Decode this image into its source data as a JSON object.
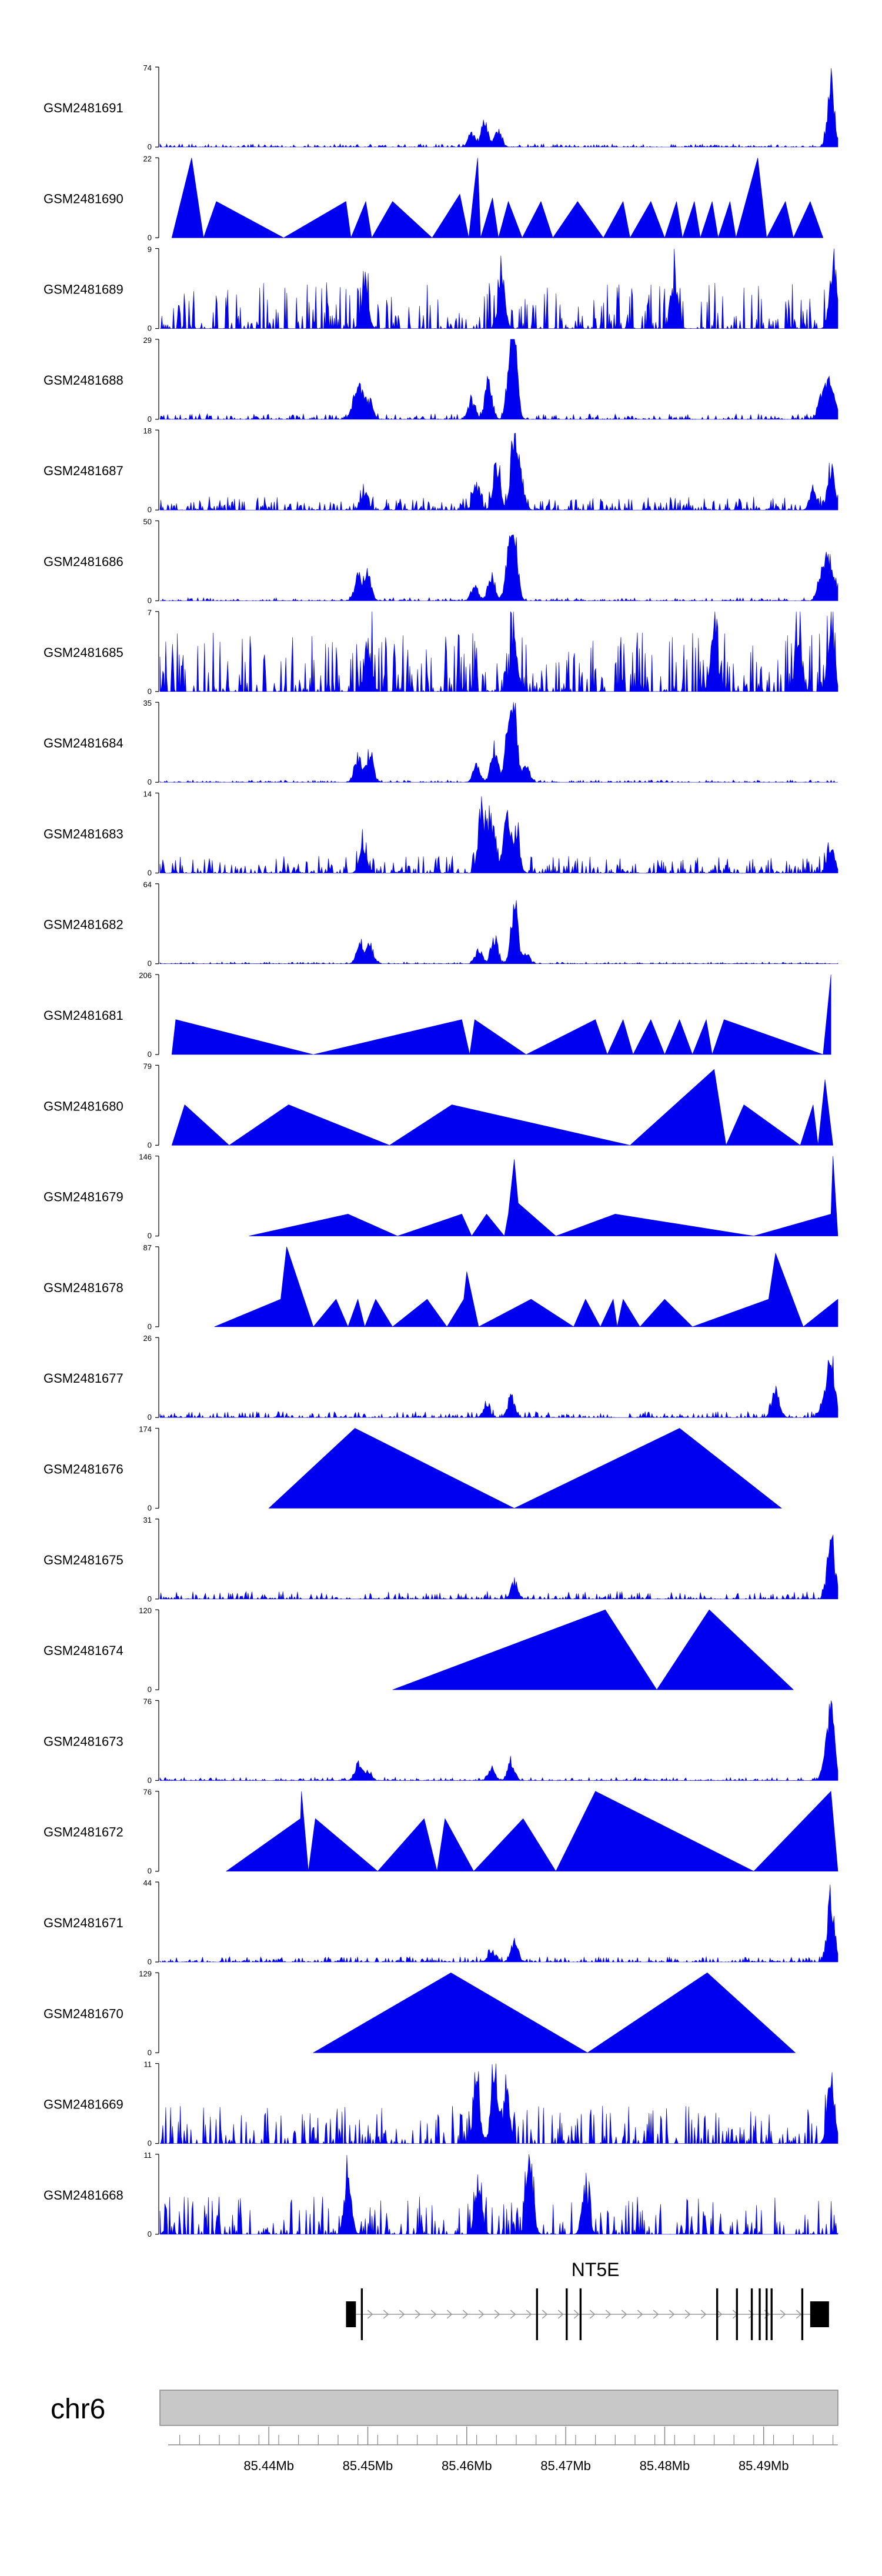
{
  "chart_data": {
    "type": "area",
    "title": "",
    "region": {
      "chromosome": "chr6",
      "start_mb": 85.429,
      "end_mb": 85.4975
    },
    "axis": {
      "ticks_mb": [
        85.44,
        85.45,
        85.46,
        85.47,
        85.48,
        85.49
      ],
      "tick_labels": [
        "85.44Mb",
        "85.45Mb",
        "85.46Mb",
        "85.47Mb",
        "85.48Mb",
        "85.49Mb"
      ]
    },
    "colors": {
      "signal": "#0000f0",
      "gene": "#000000",
      "ideogram": "#c8c8c8",
      "intron_arrow": "#999999"
    },
    "tracks": [
      {
        "name": "GSM2481691",
        "ymax": 74,
        "kind": "sparse",
        "peaks": [
          [
            85.4605,
            14
          ],
          [
            85.4618,
            28
          ],
          [
            85.4632,
            18
          ],
          [
            85.4968,
            74
          ]
        ],
        "noise": 3
      },
      {
        "name": "GSM2481690",
        "ymax": 22,
        "kind": "wedges",
        "points": [
          [
            85.4302,
            0
          ],
          [
            85.4322,
            22
          ],
          [
            85.4334,
            0
          ],
          [
            85.4347,
            10
          ],
          [
            85.4415,
            0
          ],
          [
            85.4478,
            10
          ],
          [
            85.4483,
            0
          ],
          [
            85.4498,
            10
          ],
          [
            85.4504,
            0
          ],
          [
            85.4525,
            10
          ],
          [
            85.4565,
            0
          ],
          [
            85.4593,
            12
          ],
          [
            85.4602,
            0
          ],
          [
            85.4611,
            22
          ],
          [
            85.4614,
            0
          ],
          [
            85.4626,
            11
          ],
          [
            85.4632,
            0
          ],
          [
            85.4642,
            10
          ],
          [
            85.4656,
            0
          ],
          [
            85.4675,
            10
          ],
          [
            85.4687,
            0
          ],
          [
            85.4712,
            10
          ],
          [
            85.4738,
            0
          ],
          [
            85.4758,
            10
          ],
          [
            85.4765,
            0
          ],
          [
            85.4786,
            10
          ],
          [
            85.48,
            0
          ],
          [
            85.4812,
            10
          ],
          [
            85.4818,
            0
          ],
          [
            85.483,
            10
          ],
          [
            85.4836,
            0
          ],
          [
            85.4848,
            10
          ],
          [
            85.4854,
            0
          ],
          [
            85.4866,
            10
          ],
          [
            85.4872,
            0
          ],
          [
            85.4894,
            22
          ],
          [
            85.4903,
            0
          ],
          [
            85.4922,
            10
          ],
          [
            85.493,
            0
          ],
          [
            85.4947,
            10
          ],
          [
            85.496,
            0
          ]
        ]
      },
      {
        "name": "GSM2481689",
        "ymax": 9,
        "kind": "dense",
        "peaks": [
          [
            85.4497,
            6
          ],
          [
            85.4635,
            7
          ],
          [
            85.481,
            6
          ],
          [
            85.497,
            9
          ]
        ],
        "noise": 4
      },
      {
        "name": "GSM2481688",
        "ymax": 29,
        "kind": "sparse",
        "peaks": [
          [
            85.4487,
            9
          ],
          [
            85.4493,
            12
          ],
          [
            85.4502,
            8
          ],
          [
            85.4605,
            8
          ],
          [
            85.4622,
            16
          ],
          [
            85.4644,
            22
          ],
          [
            85.4648,
            29
          ],
          [
            85.4958,
            10
          ],
          [
            85.4965,
            14
          ],
          [
            85.4971,
            9
          ]
        ],
        "noise": 2
      },
      {
        "name": "GSM2481687",
        "ymax": 18,
        "kind": "sparse",
        "peaks": [
          [
            85.4497,
            5
          ],
          [
            85.461,
            7
          ],
          [
            85.463,
            14
          ],
          [
            85.4648,
            18
          ],
          [
            85.4655,
            8
          ],
          [
            85.495,
            5
          ],
          [
            85.4968,
            11
          ]
        ],
        "noise": 3
      },
      {
        "name": "GSM2481686",
        "ymax": 50,
        "kind": "sparse",
        "peaks": [
          [
            85.449,
            18
          ],
          [
            85.45,
            22
          ],
          [
            85.4608,
            12
          ],
          [
            85.4625,
            20
          ],
          [
            85.4642,
            30
          ],
          [
            85.4648,
            48
          ],
          [
            85.4958,
            20
          ],
          [
            85.4965,
            30
          ],
          [
            85.4972,
            14
          ]
        ],
        "noise": 2
      },
      {
        "name": "GSM2481685",
        "ymax": 7,
        "kind": "dense",
        "peaks": [
          [
            85.45,
            5
          ],
          [
            85.4648,
            6
          ],
          [
            85.485,
            7
          ],
          [
            85.4935,
            6
          ],
          [
            85.4968,
            6
          ]
        ],
        "noise": 4
      },
      {
        "name": "GSM2481684",
        "ymax": 35,
        "kind": "sparse",
        "peaks": [
          [
            85.449,
            14
          ],
          [
            85.4502,
            16
          ],
          [
            85.461,
            10
          ],
          [
            85.4628,
            18
          ],
          [
            85.4642,
            26
          ],
          [
            85.4648,
            35
          ],
          [
            85.466,
            8
          ]
        ],
        "noise": 1
      },
      {
        "name": "GSM2481683",
        "ymax": 14,
        "kind": "sparse",
        "peaks": [
          [
            85.4495,
            6
          ],
          [
            85.4615,
            14
          ],
          [
            85.4625,
            11
          ],
          [
            85.464,
            10
          ],
          [
            85.465,
            8
          ],
          [
            85.4968,
            6
          ]
        ],
        "noise": 3
      },
      {
        "name": "GSM2481682",
        "ymax": 64,
        "kind": "sparse",
        "peaks": [
          [
            85.4492,
            22
          ],
          [
            85.4502,
            18
          ],
          [
            85.4612,
            14
          ],
          [
            85.4628,
            26
          ],
          [
            85.4648,
            60
          ],
          [
            85.466,
            10
          ]
        ],
        "noise": 1.5
      },
      {
        "name": "GSM2481681",
        "ymax": 206,
        "kind": "wedges",
        "points": [
          [
            85.4302,
            0
          ],
          [
            85.4306,
            90
          ],
          [
            85.4445,
            0
          ],
          [
            85.4595,
            90
          ],
          [
            85.4603,
            0
          ],
          [
            85.4608,
            90
          ],
          [
            85.466,
            0
          ],
          [
            85.473,
            90
          ],
          [
            85.4742,
            0
          ],
          [
            85.4758,
            90
          ],
          [
            85.4768,
            0
          ],
          [
            85.4786,
            90
          ],
          [
            85.48,
            0
          ],
          [
            85.4815,
            90
          ],
          [
            85.4828,
            0
          ],
          [
            85.4842,
            90
          ],
          [
            85.4848,
            0
          ],
          [
            85.486,
            90
          ],
          [
            85.496,
            0
          ],
          [
            85.4968,
            206
          ]
        ]
      },
      {
        "name": "GSM2481680",
        "ymax": 79,
        "kind": "wedges",
        "points": [
          [
            85.4302,
            0
          ],
          [
            85.4315,
            40
          ],
          [
            85.436,
            0
          ],
          [
            85.442,
            40
          ],
          [
            85.4522,
            0
          ],
          [
            85.4585,
            40
          ],
          [
            85.4765,
            0
          ],
          [
            85.485,
            75
          ],
          [
            85.4862,
            0
          ],
          [
            85.488,
            40
          ],
          [
            85.4937,
            0
          ],
          [
            85.495,
            40
          ],
          [
            85.4955,
            0
          ],
          [
            85.4962,
            65
          ],
          [
            85.497,
            0
          ]
        ]
      },
      {
        "name": "GSM2481679",
        "ymax": 146,
        "kind": "wedges",
        "points": [
          [
            85.438,
            0
          ],
          [
            85.448,
            40
          ],
          [
            85.453,
            0
          ],
          [
            85.4595,
            40
          ],
          [
            85.4605,
            0
          ],
          [
            85.462,
            40
          ],
          [
            85.4638,
            0
          ],
          [
            85.4642,
            40
          ],
          [
            85.4648,
            140
          ],
          [
            85.4652,
            60
          ],
          [
            85.469,
            0
          ],
          [
            85.475,
            40
          ],
          [
            85.489,
            0
          ],
          [
            85.4968,
            40
          ],
          [
            85.497,
            146
          ],
          [
            85.4975,
            0
          ]
        ]
      },
      {
        "name": "GSM2481678",
        "ymax": 87,
        "kind": "wedges",
        "points": [
          [
            85.4345,
            0
          ],
          [
            85.4412,
            30
          ],
          [
            85.4418,
            87
          ],
          [
            85.4445,
            0
          ],
          [
            85.4468,
            30
          ],
          [
            85.448,
            0
          ],
          [
            85.449,
            30
          ],
          [
            85.4497,
            0
          ],
          [
            85.4508,
            30
          ],
          [
            85.4525,
            0
          ],
          [
            85.456,
            30
          ],
          [
            85.458,
            0
          ],
          [
            85.4597,
            30
          ],
          [
            85.46,
            60
          ],
          [
            85.4612,
            0
          ],
          [
            85.4665,
            30
          ],
          [
            85.4708,
            0
          ],
          [
            85.472,
            30
          ],
          [
            85.4735,
            0
          ],
          [
            85.4748,
            30
          ],
          [
            85.4752,
            0
          ],
          [
            85.4758,
            30
          ],
          [
            85.4775,
            0
          ],
          [
            85.48,
            30
          ],
          [
            85.4828,
            0
          ],
          [
            85.4905,
            30
          ],
          [
            85.4912,
            80
          ],
          [
            85.494,
            0
          ],
          [
            85.4975,
            30
          ]
        ]
      },
      {
        "name": "GSM2481677",
        "ymax": 26,
        "kind": "sparse",
        "peaks": [
          [
            85.462,
            5
          ],
          [
            85.4645,
            8
          ],
          [
            85.4912,
            12
          ],
          [
            85.496,
            6
          ],
          [
            85.4968,
            26
          ]
        ],
        "noise": 2
      },
      {
        "name": "GSM2481676",
        "ymax": 174,
        "kind": "wedges",
        "points": [
          [
            85.44,
            0
          ],
          [
            85.4487,
            174
          ],
          [
            85.4648,
            0
          ],
          [
            85.4815,
            174
          ],
          [
            85.4918,
            0
          ]
        ]
      },
      {
        "name": "GSM2481675",
        "ymax": 31,
        "kind": "sparse",
        "peaks": [
          [
            85.4648,
            8
          ],
          [
            85.4968,
            31
          ]
        ],
        "noise": 3
      },
      {
        "name": "GSM2481674",
        "ymax": 120,
        "kind": "wedges",
        "points": [
          [
            85.4525,
            0
          ],
          [
            85.474,
            120
          ],
          [
            85.4792,
            0
          ],
          [
            85.4845,
            120
          ],
          [
            85.493,
            0
          ]
        ]
      },
      {
        "name": "GSM2481673",
        "ymax": 76,
        "kind": "sparse",
        "peaks": [
          [
            85.449,
            18
          ],
          [
            85.45,
            12
          ],
          [
            85.4625,
            14
          ],
          [
            85.4645,
            22
          ],
          [
            85.4962,
            20
          ],
          [
            85.4968,
            76
          ]
        ],
        "noise": 3
      },
      {
        "name": "GSM2481672",
        "ymax": 76,
        "kind": "wedges",
        "points": [
          [
            85.4357,
            0
          ],
          [
            85.4432,
            50
          ],
          [
            85.4433,
            76
          ],
          [
            85.444,
            0
          ],
          [
            85.4447,
            50
          ],
          [
            85.451,
            0
          ],
          [
            85.4557,
            50
          ],
          [
            85.457,
            0
          ],
          [
            85.4578,
            50
          ],
          [
            85.4607,
            0
          ],
          [
            85.4657,
            50
          ],
          [
            85.469,
            0
          ],
          [
            85.473,
            76
          ],
          [
            85.489,
            0
          ],
          [
            85.4968,
            76
          ],
          [
            85.4975,
            0
          ]
        ]
      },
      {
        "name": "GSM2481671",
        "ymax": 44,
        "kind": "sparse",
        "peaks": [
          [
            85.4625,
            8
          ],
          [
            85.4648,
            14
          ],
          [
            85.4968,
            44
          ]
        ],
        "noise": 3
      },
      {
        "name": "GSM2481670",
        "ymax": 129,
        "kind": "wedges",
        "points": [
          [
            85.4445,
            0
          ],
          [
            85.4584,
            129
          ],
          [
            85.4722,
            0
          ],
          [
            85.4843,
            129
          ],
          [
            85.4932,
            0
          ]
        ]
      },
      {
        "name": "GSM2481669",
        "ymax": 11,
        "kind": "dense",
        "peaks": [
          [
            85.461,
            9
          ],
          [
            85.4628,
            10
          ],
          [
            85.464,
            8
          ],
          [
            85.4968,
            11
          ]
        ],
        "noise": 4
      },
      {
        "name": "GSM2481668",
        "ymax": 11,
        "kind": "dense",
        "peaks": [
          [
            85.448,
            10
          ],
          [
            85.4612,
            9
          ],
          [
            85.4664,
            11
          ],
          [
            85.472,
            7
          ]
        ],
        "noise": 4
      }
    ],
    "gene": {
      "name": "NT5E",
      "start_mb": 85.4488,
      "end_mb": 85.4966,
      "exons_mb": [
        [
          85.4478,
          85.4488
        ],
        [
          85.4493,
          85.4495
        ],
        [
          85.467,
          85.4672
        ],
        [
          85.47,
          85.4702
        ],
        [
          85.4714,
          85.4716
        ],
        [
          85.4852,
          85.4854
        ],
        [
          85.4872,
          85.4874
        ],
        [
          85.4887,
          85.4889
        ],
        [
          85.4895,
          85.4897
        ],
        [
          85.4902,
          85.4904
        ],
        [
          85.4907,
          85.4909
        ],
        [
          85.4938,
          85.494
        ],
        [
          85.4947,
          85.4966
        ]
      ]
    }
  }
}
